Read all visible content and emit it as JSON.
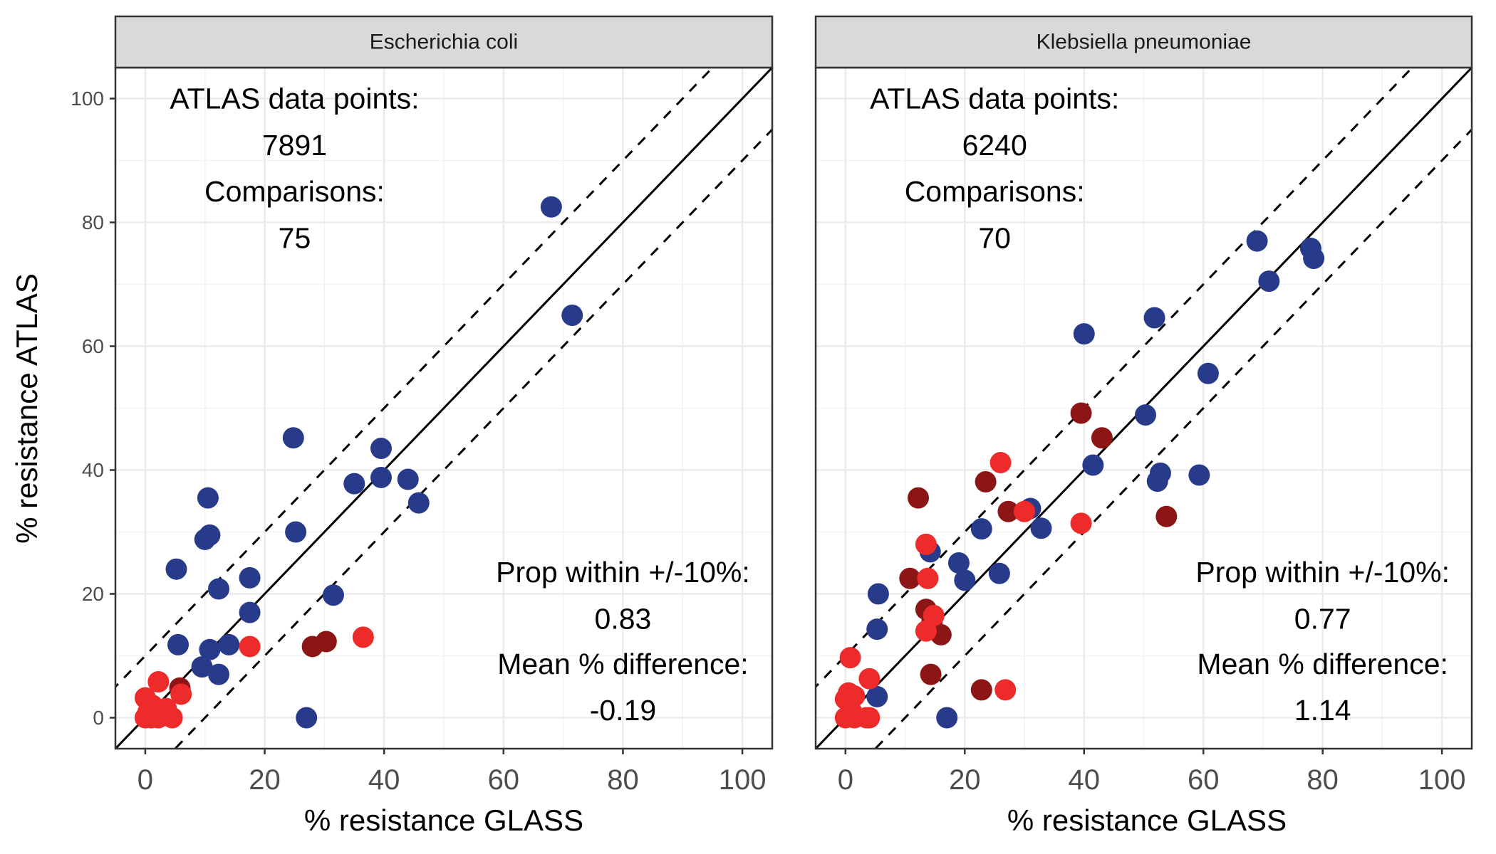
{
  "chart_data": {
    "type": "scatter",
    "xlabel": "% resistance GLASS",
    "ylabel": "% resistance ATLAS",
    "xlim": [
      -5,
      105
    ],
    "ylim": [
      -5,
      105
    ],
    "x_ticks": [
      0,
      20,
      40,
      60,
      80,
      100
    ],
    "y_ticks": [
      0,
      20,
      40,
      60,
      80,
      100
    ],
    "grid": true,
    "reference_lines": {
      "identity": "y = x",
      "band": 10
    },
    "colors": {
      "navy": "#283a8a",
      "red": "#ee2b2b",
      "darkred": "#8c1515"
    },
    "panels": [
      {
        "strip": "Escherichia coli",
        "atlas_label": "ATLAS data points:",
        "atlas_value": "7891",
        "comparisons_label": "Comparisons:",
        "comparisons_value": "75",
        "prop_label": "Prop within +/-10%:",
        "prop_value": "0.83",
        "mean_label": "Mean % difference:",
        "mean_value": "-0.19",
        "points": [
          {
            "x": 68,
            "y": 82.5,
            "c": "navy"
          },
          {
            "x": 71.5,
            "y": 65,
            "c": "navy"
          },
          {
            "x": 24.8,
            "y": 45.2,
            "c": "navy"
          },
          {
            "x": 39.5,
            "y": 43.5,
            "c": "navy"
          },
          {
            "x": 39.5,
            "y": 38.8,
            "c": "navy"
          },
          {
            "x": 35,
            "y": 37.8,
            "c": "navy"
          },
          {
            "x": 44,
            "y": 38.5,
            "c": "navy"
          },
          {
            "x": 45.8,
            "y": 34.7,
            "c": "navy"
          },
          {
            "x": 10.5,
            "y": 35.5,
            "c": "navy"
          },
          {
            "x": 10.8,
            "y": 29.5,
            "c": "navy"
          },
          {
            "x": 10,
            "y": 28.8,
            "c": "navy"
          },
          {
            "x": 25.2,
            "y": 30,
            "c": "navy"
          },
          {
            "x": 5.2,
            "y": 24,
            "c": "navy"
          },
          {
            "x": 17.5,
            "y": 22.6,
            "c": "navy"
          },
          {
            "x": 12.3,
            "y": 20.8,
            "c": "navy"
          },
          {
            "x": 31.5,
            "y": 19.8,
            "c": "navy"
          },
          {
            "x": 17.5,
            "y": 17,
            "c": "navy"
          },
          {
            "x": 5.5,
            "y": 11.8,
            "c": "navy"
          },
          {
            "x": 10.8,
            "y": 11,
            "c": "navy"
          },
          {
            "x": 14,
            "y": 11.8,
            "c": "navy"
          },
          {
            "x": 9.5,
            "y": 8.2,
            "c": "navy"
          },
          {
            "x": 12.3,
            "y": 7,
            "c": "navy"
          },
          {
            "x": 27,
            "y": 0,
            "c": "navy"
          },
          {
            "x": 17.5,
            "y": 11.5,
            "c": "red"
          },
          {
            "x": 36.5,
            "y": 13,
            "c": "red"
          },
          {
            "x": 28,
            "y": 11.5,
            "c": "darkred"
          },
          {
            "x": 30.3,
            "y": 12.3,
            "c": "darkred"
          },
          {
            "x": 5.8,
            "y": 4.8,
            "c": "darkred"
          },
          {
            "x": 2.2,
            "y": 5.8,
            "c": "red"
          },
          {
            "x": 6,
            "y": 3.8,
            "c": "red"
          },
          {
            "x": 0,
            "y": 3.2,
            "c": "red"
          },
          {
            "x": 1.2,
            "y": 2,
            "c": "red"
          },
          {
            "x": 3.5,
            "y": 1.5,
            "c": "red"
          },
          {
            "x": 0.5,
            "y": 1,
            "c": "red"
          },
          {
            "x": 2,
            "y": 0.5,
            "c": "red"
          },
          {
            "x": 0,
            "y": 0,
            "c": "red"
          },
          {
            "x": 1,
            "y": 0,
            "c": "red"
          },
          {
            "x": 2.2,
            "y": 0,
            "c": "red"
          },
          {
            "x": 4.5,
            "y": 0,
            "c": "red"
          },
          {
            "x": 3,
            "y": 0.5,
            "c": "red"
          }
        ]
      },
      {
        "strip": "Klebsiella pneumoniae",
        "atlas_label": "ATLAS data points:",
        "atlas_value": "6240",
        "comparisons_label": "Comparisons:",
        "comparisons_value": "70",
        "prop_label": "Prop within +/-10%:",
        "prop_value": "0.77",
        "mean_label": "Mean % difference:",
        "mean_value": "1.14",
        "points": [
          {
            "x": 69,
            "y": 77,
            "c": "navy"
          },
          {
            "x": 78,
            "y": 75.8,
            "c": "navy"
          },
          {
            "x": 78.5,
            "y": 74.2,
            "c": "navy"
          },
          {
            "x": 71,
            "y": 70.5,
            "c": "navy"
          },
          {
            "x": 51.8,
            "y": 64.6,
            "c": "navy"
          },
          {
            "x": 40,
            "y": 62,
            "c": "navy"
          },
          {
            "x": 60.8,
            "y": 55.6,
            "c": "navy"
          },
          {
            "x": 50.3,
            "y": 48.9,
            "c": "navy"
          },
          {
            "x": 41.5,
            "y": 40.8,
            "c": "navy"
          },
          {
            "x": 52.8,
            "y": 39.5,
            "c": "navy"
          },
          {
            "x": 52.3,
            "y": 38.2,
            "c": "navy"
          },
          {
            "x": 59.3,
            "y": 39.2,
            "c": "navy"
          },
          {
            "x": 31,
            "y": 33.8,
            "c": "navy"
          },
          {
            "x": 32.8,
            "y": 30.6,
            "c": "navy"
          },
          {
            "x": 22.8,
            "y": 30.5,
            "c": "navy"
          },
          {
            "x": 14.2,
            "y": 26.8,
            "c": "navy"
          },
          {
            "x": 19,
            "y": 25,
            "c": "navy"
          },
          {
            "x": 25.8,
            "y": 23.3,
            "c": "navy"
          },
          {
            "x": 20,
            "y": 22.2,
            "c": "navy"
          },
          {
            "x": 5.5,
            "y": 20,
            "c": "navy"
          },
          {
            "x": 5.3,
            "y": 14.3,
            "c": "navy"
          },
          {
            "x": 5.3,
            "y": 3.4,
            "c": "navy"
          },
          {
            "x": 17,
            "y": 0,
            "c": "navy"
          },
          {
            "x": 39.5,
            "y": 49.2,
            "c": "darkred"
          },
          {
            "x": 43,
            "y": 45.2,
            "c": "darkred"
          },
          {
            "x": 23.5,
            "y": 38.1,
            "c": "darkred"
          },
          {
            "x": 12.2,
            "y": 35.5,
            "c": "darkred"
          },
          {
            "x": 27.3,
            "y": 33.3,
            "c": "darkred"
          },
          {
            "x": 53.8,
            "y": 32.5,
            "c": "darkred"
          },
          {
            "x": 10.8,
            "y": 22.5,
            "c": "darkred"
          },
          {
            "x": 13.5,
            "y": 17.5,
            "c": "darkred"
          },
          {
            "x": 14.5,
            "y": 15.5,
            "c": "darkred"
          },
          {
            "x": 16,
            "y": 13.4,
            "c": "darkred"
          },
          {
            "x": 14.3,
            "y": 7,
            "c": "darkred"
          },
          {
            "x": 22.8,
            "y": 4.5,
            "c": "darkred"
          },
          {
            "x": 26,
            "y": 41.2,
            "c": "red"
          },
          {
            "x": 30,
            "y": 33.3,
            "c": "red"
          },
          {
            "x": 39.5,
            "y": 31.4,
            "c": "red"
          },
          {
            "x": 13.5,
            "y": 28,
            "c": "red"
          },
          {
            "x": 13.8,
            "y": 22.5,
            "c": "red"
          },
          {
            "x": 14.8,
            "y": 16.5,
            "c": "red"
          },
          {
            "x": 13.5,
            "y": 14,
            "c": "red"
          },
          {
            "x": 26.8,
            "y": 4.5,
            "c": "red"
          },
          {
            "x": 0.8,
            "y": 9.7,
            "c": "red"
          },
          {
            "x": 4,
            "y": 6.3,
            "c": "red"
          },
          {
            "x": 0.5,
            "y": 4,
            "c": "red"
          },
          {
            "x": 1.5,
            "y": 3.5,
            "c": "red"
          },
          {
            "x": 0,
            "y": 3,
            "c": "red"
          },
          {
            "x": 1,
            "y": 1,
            "c": "red"
          },
          {
            "x": 0,
            "y": 0,
            "c": "red"
          },
          {
            "x": 1.5,
            "y": 0,
            "c": "red"
          },
          {
            "x": 3.5,
            "y": 0,
            "c": "red"
          },
          {
            "x": 4,
            "y": 0,
            "c": "red"
          }
        ]
      }
    ]
  }
}
